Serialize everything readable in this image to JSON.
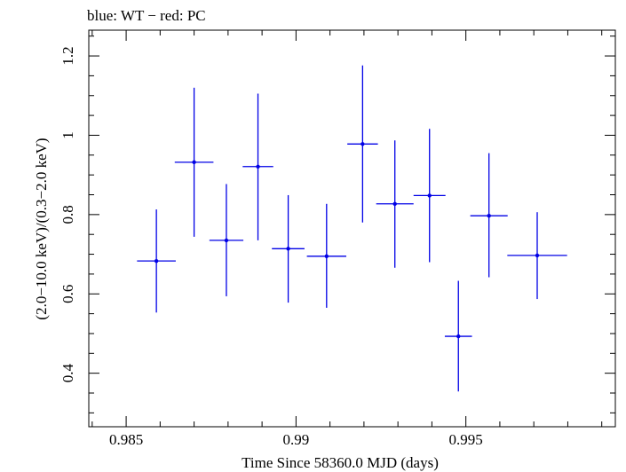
{
  "chart_data": {
    "type": "scatter",
    "title": "blue: WT − red: PC",
    "xlabel": "Time Since 58360.0 MJD (days)",
    "ylabel": "(2.0−10.0 keV)/(0.3−2.0 keV)",
    "xlim": [
      0.9839,
      0.9994
    ],
    "ylim": [
      0.265,
      1.265
    ],
    "x_ticks": [
      {
        "value": 0.985,
        "label": "0.985"
      },
      {
        "value": 0.99,
        "label": "0.99"
      },
      {
        "value": 0.995,
        "label": "0.995"
      }
    ],
    "y_ticks": [
      {
        "value": 0.4,
        "label": "0.4"
      },
      {
        "value": 0.6,
        "label": "0.6"
      },
      {
        "value": 0.8,
        "label": "0.8"
      },
      {
        "value": 1.0,
        "label": "1"
      },
      {
        "value": 1.2,
        "label": "1.2"
      }
    ],
    "grid": false,
    "series": [
      {
        "color": "#0000e6",
        "points": [
          {
            "x": 0.98589,
            "xerr": 0.00057,
            "y": 0.683,
            "ylo": 0.553,
            "yhi": 0.813
          },
          {
            "x": 0.987,
            "xerr": 0.00057,
            "y": 0.932,
            "ylo": 0.744,
            "yhi": 1.12
          },
          {
            "x": 0.98795,
            "xerr": 0.0005,
            "y": 0.735,
            "ylo": 0.594,
            "yhi": 0.877
          },
          {
            "x": 0.98888,
            "xerr": 0.00045,
            "y": 0.921,
            "ylo": 0.735,
            "yhi": 1.105
          },
          {
            "x": 0.98977,
            "xerr": 0.00048,
            "y": 0.714,
            "ylo": 0.578,
            "yhi": 0.849
          },
          {
            "x": 0.9909,
            "xerr": 0.00058,
            "y": 0.695,
            "ylo": 0.565,
            "yhi": 0.827
          },
          {
            "x": 0.99196,
            "xerr": 0.00045,
            "y": 0.978,
            "ylo": 0.78,
            "yhi": 1.176
          },
          {
            "x": 0.99291,
            "xerr": 0.00055,
            "y": 0.827,
            "ylo": 0.666,
            "yhi": 0.987
          },
          {
            "x": 0.99393,
            "xerr": 0.00047,
            "y": 0.848,
            "ylo": 0.68,
            "yhi": 1.016
          },
          {
            "x": 0.99478,
            "xerr": 0.0004,
            "y": 0.493,
            "ylo": 0.354,
            "yhi": 0.633
          },
          {
            "x": 0.99568,
            "xerr": 0.00055,
            "y": 0.797,
            "ylo": 0.642,
            "yhi": 0.955
          },
          {
            "x": 0.9971,
            "xerr": 0.00088,
            "y": 0.697,
            "ylo": 0.587,
            "yhi": 0.806
          }
        ]
      }
    ]
  }
}
